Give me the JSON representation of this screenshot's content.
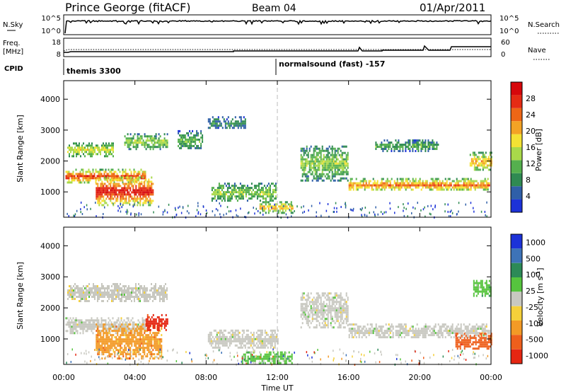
{
  "header": {
    "station": "Prince George (fitACF)",
    "beam": "Beam 04",
    "date": "01/Apr/2011"
  },
  "panels": {
    "nsky": {
      "label": "N.Sky",
      "ticks_left": [
        "10^5",
        "10^0"
      ],
      "ticks_right": [
        "10^5",
        "10^0"
      ],
      "right_label": "N.Search"
    },
    "freq": {
      "label_lines": [
        "Freq.",
        "[MHz]"
      ],
      "ticks_left": [
        "18",
        "8"
      ],
      "ticks_right": [
        "60",
        "0"
      ],
      "right_label": "Nave"
    },
    "cpid": {
      "label": "CPID",
      "modes": [
        {
          "label": "themis 3300",
          "start_hour": 0
        },
        {
          "label": "normalsound (fast) -157",
          "start_hour": 12
        }
      ]
    }
  },
  "chart_data": [
    {
      "type": "heatmap",
      "name": "Power",
      "ylabel": "Slant Range [km]",
      "xlabel": "Time UT",
      "xlim_hours": [
        0,
        24
      ],
      "ylim_km": [
        180,
        4600
      ],
      "yticks": [
        1000,
        2000,
        3000,
        4000
      ],
      "xticks": [
        "00:00",
        "04:00",
        "08:00",
        "12:00",
        "16:00",
        "20:00",
        "00:00"
      ],
      "colorbar": {
        "label": "Power [dB]",
        "ticks": [
          "4",
          "8",
          "12",
          "16",
          "20",
          "24",
          "28"
        ],
        "colors": [
          "#1c32d8",
          "#2f5fa8",
          "#2f8a52",
          "#55b04e",
          "#a9d94a",
          "#f4e234",
          "#f3a325",
          "#ee6616",
          "#e52b14",
          "#d6070b"
        ]
      },
      "echo_regions": [
        {
          "t0": 0.1,
          "t1": 4.6,
          "r0": 1300,
          "r1": 1750,
          "level": 8
        },
        {
          "t0": 1.8,
          "t1": 5.0,
          "r0": 600,
          "r1": 1500,
          "level": 9
        },
        {
          "t0": 0.2,
          "t1": 2.8,
          "r0": 2150,
          "r1": 2600,
          "level": 5
        },
        {
          "t0": 3.4,
          "t1": 5.8,
          "r0": 2400,
          "r1": 2900,
          "level": 4
        },
        {
          "t0": 6.4,
          "t1": 7.8,
          "r0": 2400,
          "r1": 3000,
          "level": 3
        },
        {
          "t0": 8.1,
          "t1": 10.2,
          "r0": 3050,
          "r1": 3450,
          "level": 2
        },
        {
          "t0": 8.3,
          "t1": 11.9,
          "r0": 700,
          "r1": 1300,
          "level": 4
        },
        {
          "t0": 11.0,
          "t1": 12.9,
          "r0": 350,
          "r1": 700,
          "level": 6
        },
        {
          "t0": 13.3,
          "t1": 16.0,
          "r0": 1400,
          "r1": 2500,
          "level": 4
        },
        {
          "t0": 16.0,
          "t1": 23.9,
          "r0": 1050,
          "r1": 1450,
          "level": 7
        },
        {
          "t0": 17.5,
          "t1": 21.0,
          "r0": 2350,
          "r1": 2700,
          "level": 3
        },
        {
          "t0": 22.8,
          "t1": 24.0,
          "r0": 1700,
          "r1": 2300,
          "level": 6
        }
      ]
    },
    {
      "type": "heatmap",
      "name": "Velocity",
      "ylabel": "Slant Range [km]",
      "xlabel": "Time UT",
      "xlim_hours": [
        0,
        24
      ],
      "ylim_km": [
        180,
        4600
      ],
      "yticks": [
        1000,
        2000,
        3000,
        4000
      ],
      "xticks": [
        "00:00",
        "04:00",
        "08:00",
        "12:00",
        "16:00",
        "20:00",
        "00:00"
      ],
      "colorbar": {
        "label": "Velocity [m s^-1]",
        "ticks": [
          "1000",
          "500",
          "100",
          "25",
          "-25",
          "-100",
          "-500",
          "-1000"
        ],
        "colors": [
          "#1c32d8",
          "#3d73b8",
          "#2c8a57",
          "#56c43e",
          "#c8c8c0",
          "#f5d03a",
          "#f39a26",
          "#ee5f1c",
          "#e52612"
        ]
      },
      "echo_regions": [
        {
          "t0": 0.1,
          "t1": 4.6,
          "r0": 1200,
          "r1": 1700,
          "cls": 4
        },
        {
          "t0": 1.8,
          "t1": 5.5,
          "r0": 400,
          "r1": 1500,
          "cls": 6
        },
        {
          "t0": 4.6,
          "t1": 5.8,
          "r0": 1300,
          "r1": 1800,
          "cls": 8
        },
        {
          "t0": 0.2,
          "t1": 5.8,
          "r0": 2200,
          "r1": 2800,
          "cls": 4
        },
        {
          "t0": 8.1,
          "t1": 12.0,
          "r0": 700,
          "r1": 1300,
          "cls": 4
        },
        {
          "t0": 10.0,
          "t1": 12.8,
          "r0": 250,
          "r1": 600,
          "cls": 3
        },
        {
          "t0": 13.3,
          "t1": 16.0,
          "r0": 1400,
          "r1": 2500,
          "cls": 4
        },
        {
          "t0": 16.0,
          "t1": 23.9,
          "r0": 1050,
          "r1": 1500,
          "cls": 4
        },
        {
          "t0": 22.0,
          "t1": 24.0,
          "r0": 700,
          "r1": 1200,
          "cls": 7
        },
        {
          "t0": 23.0,
          "t1": 24.0,
          "r0": 2400,
          "r1": 2900,
          "cls": 3
        }
      ]
    }
  ]
}
